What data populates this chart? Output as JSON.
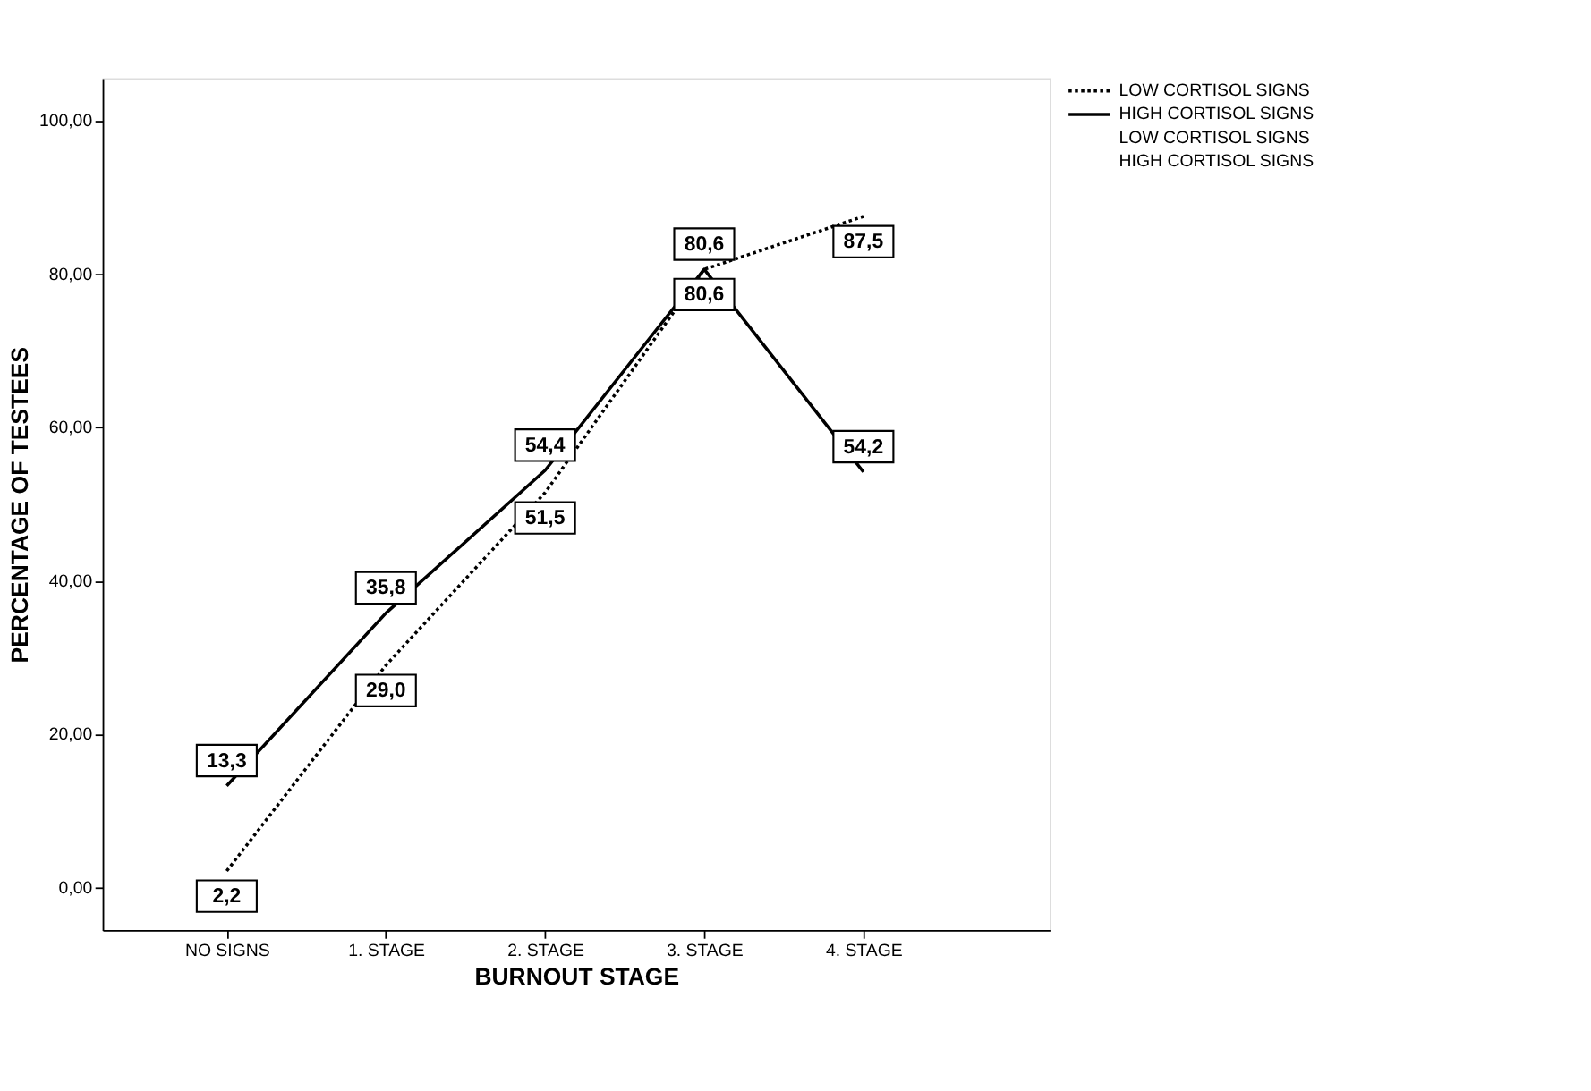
{
  "chart_data": {
    "type": "line",
    "xlabel": "BURNOUT STAGE",
    "ylabel": "PERCENTAGE OF TESTEES",
    "categories": [
      "NO SIGNS",
      "1. STAGE",
      "2. STAGE",
      "3. STAGE",
      "4. STAGE"
    ],
    "series": [
      {
        "name": "LOW CORTISOL SIGNS",
        "color": "#000000",
        "line_style": "dotted",
        "values": [
          2.2,
          29.0,
          51.5,
          80.6,
          87.5
        ],
        "value_labels": [
          "2,2",
          "29,0",
          "51,5",
          "80,6",
          "87,5"
        ]
      },
      {
        "name": "HIGH CORTISOL SIGNS",
        "color": "#000000",
        "line_style": "solid",
        "values": [
          13.3,
          35.8,
          54.4,
          80.6,
          54.2
        ],
        "value_labels": [
          "13,3",
          "35,8",
          "54,4",
          "80,6",
          "54,2"
        ]
      }
    ],
    "ylim": [
      -5.5,
      105.5
    ],
    "yticks": [
      {
        "value": 0,
        "label": "0,00"
      },
      {
        "value": 20,
        "label": "20,00"
      },
      {
        "value": 40,
        "label": "40,00"
      },
      {
        "value": 60,
        "label": "60,00"
      },
      {
        "value": 80,
        "label": "80,00"
      },
      {
        "value": 100,
        "label": "100,00"
      }
    ],
    "annotations": [
      "LOW CORTISOL SIGNS",
      "HIGH CORTISOL SIGNS"
    ],
    "legend": "top right",
    "grid": false,
    "marker": "none"
  }
}
